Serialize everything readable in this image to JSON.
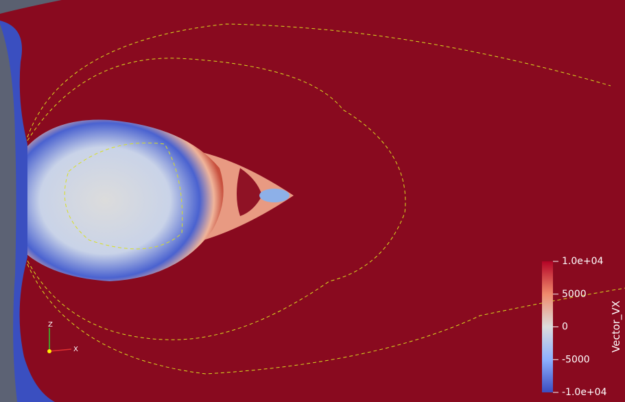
{
  "colorbar": {
    "title": "Vector_VX",
    "range": [
      -10000,
      10000
    ],
    "ticks": [
      {
        "value": 10000,
        "label": "1.0e+04"
      },
      5000,
      0,
      -5000,
      {
        "value": -10000,
        "label": "-1.0e+04"
      }
    ]
  },
  "axes": {
    "labels": [
      "Z",
      "X"
    ]
  }
}
